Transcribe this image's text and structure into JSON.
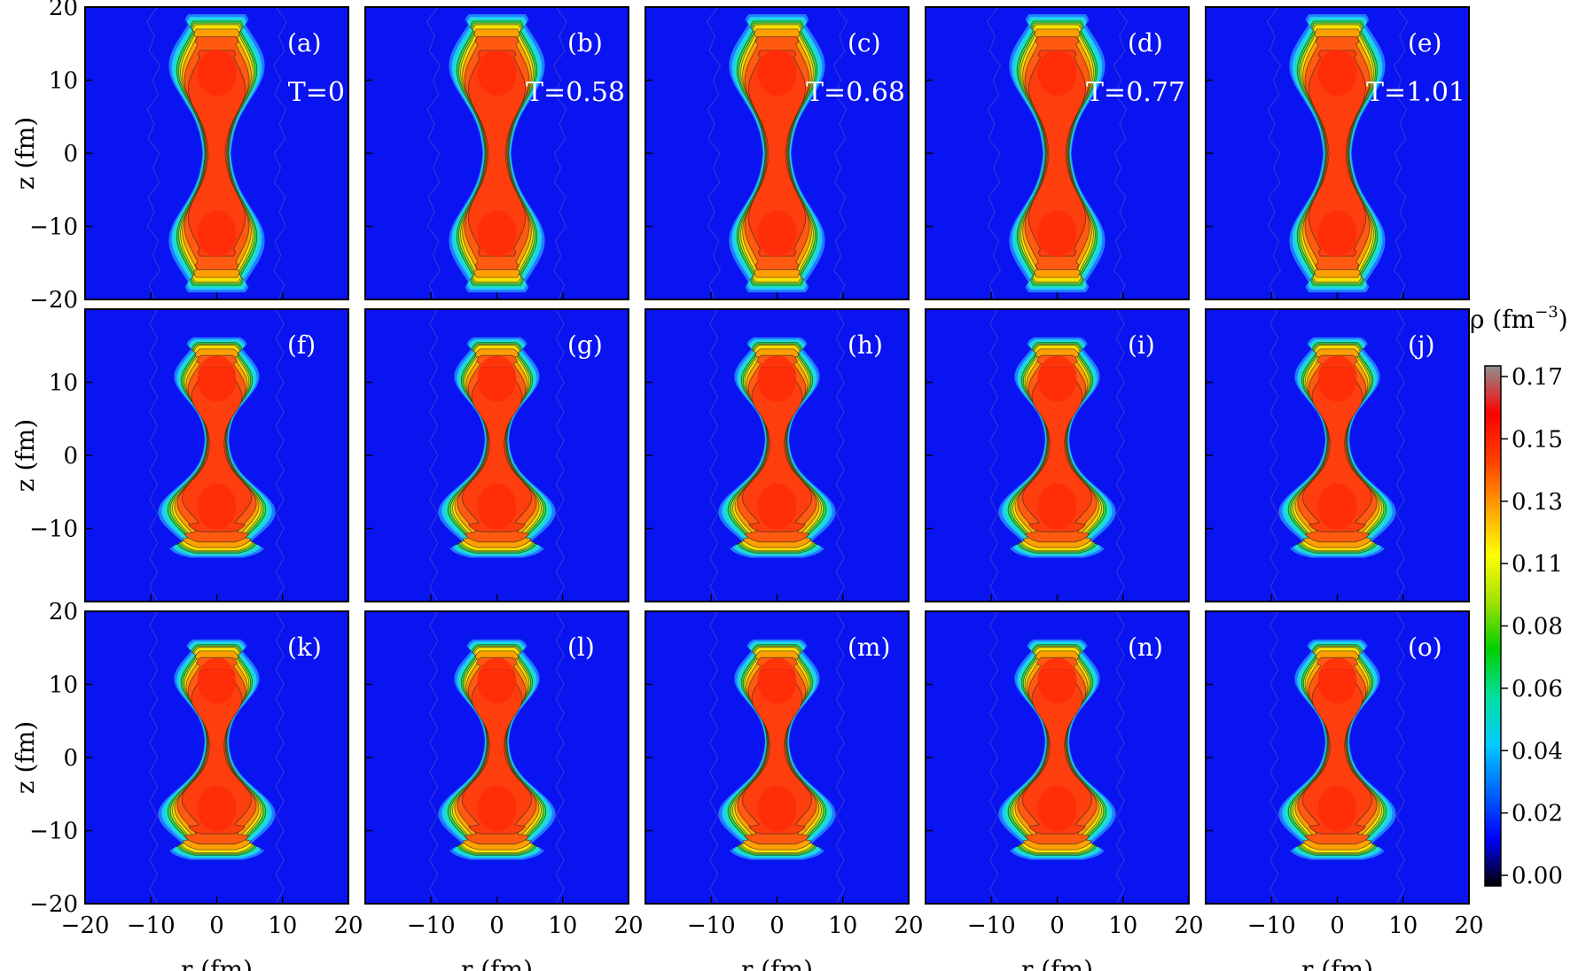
{
  "chart_data": {
    "type": "heatmap",
    "xlabel": "r  (fm)",
    "ylabel": "z  (fm)",
    "xlim": [
      -20,
      20
    ],
    "ylim": [
      -20,
      20
    ],
    "x_ticks": [
      "−20",
      "−10",
      "0",
      "10",
      "20"
    ],
    "y_ticks": [
      "20",
      "10",
      "0",
      "−10",
      "−20"
    ],
    "colorbar": {
      "label_symbol": "ρ",
      "label_unit": "(fm",
      "label_exp": "−3",
      "label_close": ")",
      "ticks": [
        "0.17",
        "0.15",
        "0.13",
        "0.11",
        "0.08",
        "0.06",
        "0.04",
        "0.02",
        "0.00"
      ],
      "range": [
        0.0,
        0.17
      ],
      "colors": [
        "#000000",
        "#0000ff",
        "#0066ff",
        "#00ccff",
        "#00e0a0",
        "#00d000",
        "#a0e000",
        "#ffff00",
        "#ffa000",
        "#ff4000",
        "#ff0000",
        "#909090"
      ]
    },
    "panels": [
      {
        "label": "(a)",
        "temperature": "T=0",
        "shape": "elongated"
      },
      {
        "label": "(b)",
        "temperature": "T=0.58",
        "shape": "elongated"
      },
      {
        "label": "(c)",
        "temperature": "T=0.68",
        "shape": "elongated"
      },
      {
        "label": "(d)",
        "temperature": "T=0.77",
        "shape": "elongated"
      },
      {
        "label": "(e)",
        "temperature": "T=1.01",
        "shape": "elongated"
      },
      {
        "label": "(f)",
        "shape": "asymmetric"
      },
      {
        "label": "(g)",
        "shape": "asymmetric"
      },
      {
        "label": "(h)",
        "shape": "asymmetric"
      },
      {
        "label": "(i)",
        "shape": "asymmetric"
      },
      {
        "label": "(j)",
        "shape": "asymmetric"
      },
      {
        "label": "(k)",
        "shape": "asymmetric"
      },
      {
        "label": "(l)",
        "shape": "asymmetric"
      },
      {
        "label": "(m)",
        "shape": "asymmetric"
      },
      {
        "label": "(n)",
        "shape": "asymmetric"
      },
      {
        "label": "(o)",
        "shape": "asymmetric"
      }
    ]
  }
}
